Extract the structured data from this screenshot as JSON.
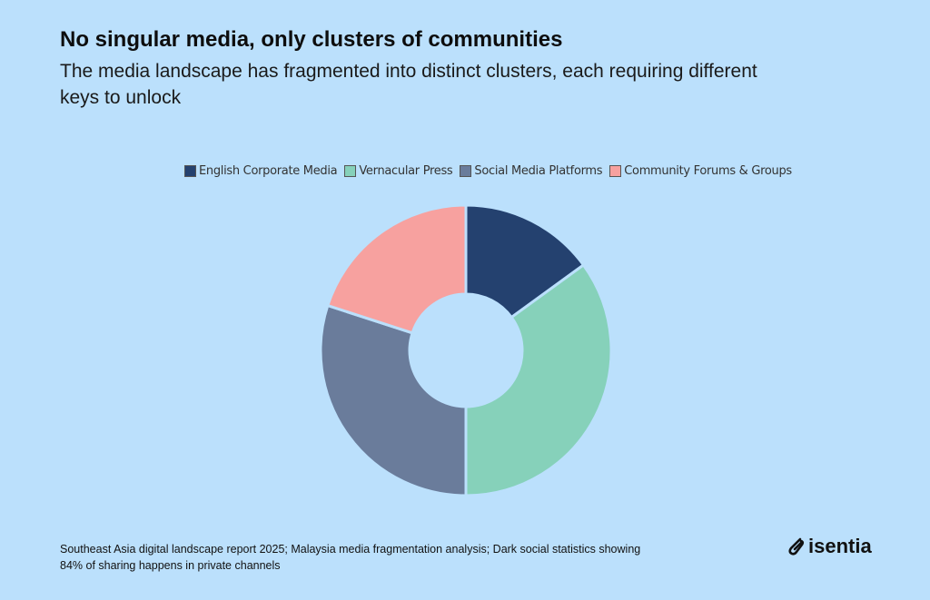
{
  "title": "No singular media, only clusters of communities",
  "subtitle": "The media landscape has fragmented into distinct clusters, each requiring different keys to unlock",
  "source": "Southeast Asia digital landscape report 2025; Malaysia media fragmentation analysis; Dark social statistics showing 84% of sharing happens in private channels",
  "logo": "isentia",
  "chart_data": {
    "type": "pie",
    "variant": "donut",
    "title": "",
    "legend_position": "top",
    "categories": [
      "English Corporate Media",
      "Vernacular Press",
      "Social Media Platforms",
      "Community Forums & Groups"
    ],
    "values": [
      15,
      35,
      30,
      20
    ],
    "colors": [
      "#24416f",
      "#86d1ba",
      "#6a7c9b",
      "#f7a19f"
    ]
  }
}
